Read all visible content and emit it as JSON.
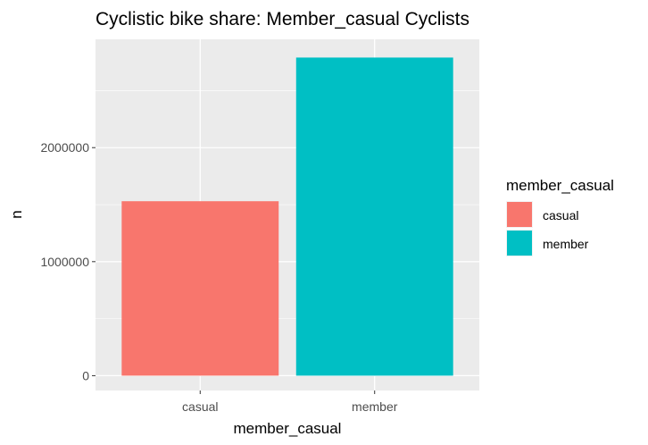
{
  "chart_data": {
    "type": "bar",
    "title": "Cyclistic bike share: Member_casual Cyclists",
    "xlabel": "member_casual",
    "ylabel": "n",
    "categories": [
      "casual",
      "member"
    ],
    "values": [
      1530000,
      2790000
    ],
    "ylim": [
      -130000,
      2950000
    ],
    "yticks": [
      0,
      1000000,
      2000000
    ],
    "ytick_labels": [
      "0",
      "1000000",
      "2000000"
    ],
    "grid": true,
    "legend": {
      "title": "member_casual",
      "placement": "right",
      "entries": [
        "casual",
        "member"
      ]
    },
    "colors": [
      "#F8766D",
      "#00BFC4"
    ],
    "panel_background": "#EBEBEB",
    "grid_color": "#FFFFFF"
  }
}
